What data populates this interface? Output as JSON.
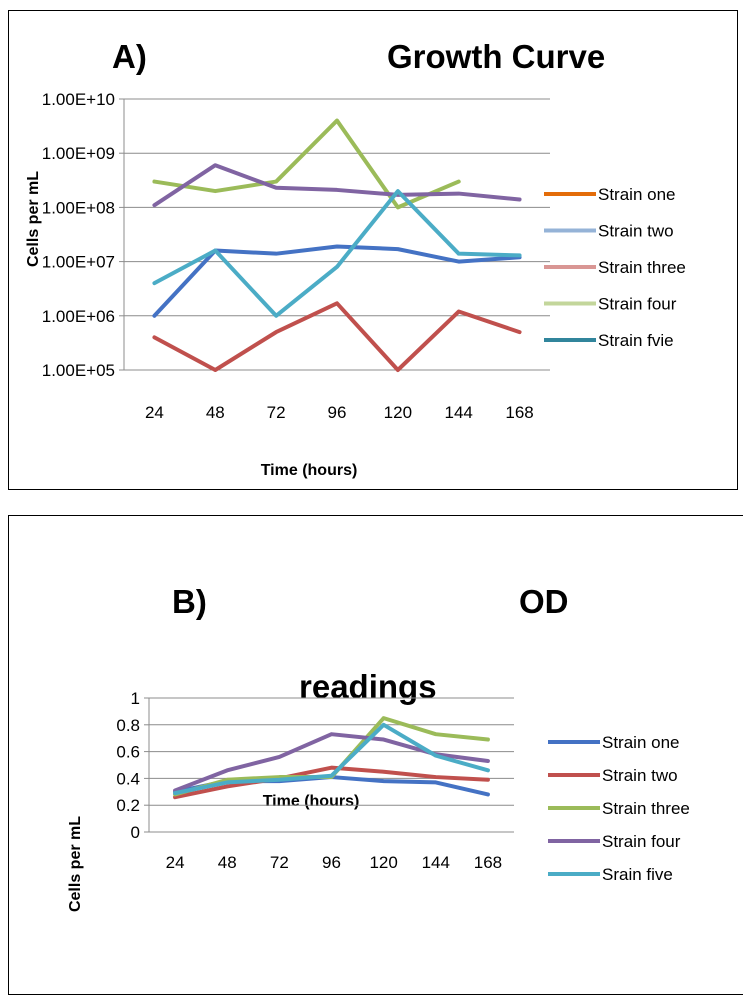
{
  "chart_data": [
    {
      "type": "line",
      "title_prefix": "A)",
      "title": "Growth Curve",
      "xlabel": "Time (hours)",
      "ylabel": "Cells per mL",
      "yscale": "log",
      "ylim": [
        100000,
        10000000000
      ],
      "y_tick_labels": [
        "1.00E+10",
        "1.00E+09",
        "1.00E+08",
        "1.00E+07",
        "1.00E+06",
        "1.00E+05"
      ],
      "categories": [
        "24",
        "48",
        "72",
        "96",
        "120",
        "144",
        "168"
      ],
      "grid": true,
      "legend_position": "right",
      "series": [
        {
          "name": "Strain one",
          "color": "#E36C09",
          "values": [
            1000000,
            16000000,
            14000000,
            19000000,
            17000000,
            10000000,
            12000000
          ],
          "line_color": "#4472C4"
        },
        {
          "name": "Strain two",
          "color": "#95B3D7",
          "values": [
            400000,
            100000,
            500000,
            1700000,
            100000,
            1200000,
            500000
          ],
          "line_color": "#C0504D"
        },
        {
          "name": "Strain three",
          "color": "#D99694",
          "values": [
            300000000,
            200000000,
            300000000,
            4000000000,
            100000000,
            300000000,
            null
          ],
          "line_color": "#9BBB59"
        },
        {
          "name": "Strain four",
          "color": "#C3D69B",
          "values": [
            110000000,
            600000000,
            230000000,
            210000000,
            170000000,
            180000000,
            140000000
          ],
          "line_color": "#8064A2"
        },
        {
          "name": "Strain fvie",
          "color": "#31859C",
          "values": [
            4000000,
            16000000,
            1000000,
            8000000,
            200000000,
            14000000,
            13000000
          ],
          "line_color": "#4BACC6"
        }
      ]
    },
    {
      "type": "line",
      "title_prefix": "B)",
      "title_line1": "OD",
      "title_line2": "readings",
      "xlabel": "Time (hours)",
      "ylabel": "Cells per mL",
      "ylim": [
        0,
        1
      ],
      "y_tick_labels": [
        "1",
        "0.8",
        "0.6",
        "0.4",
        "0.2",
        "0"
      ],
      "categories": [
        "24",
        "48",
        "72",
        "96",
        "120",
        "144",
        "168"
      ],
      "grid": true,
      "legend_position": "right",
      "series": [
        {
          "name": "Strain one",
          "color": "#4472C4",
          "values": [
            0.3,
            0.38,
            0.38,
            0.41,
            0.38,
            0.37,
            0.28
          ]
        },
        {
          "name": "Strain two",
          "color": "#C0504D",
          "values": [
            0.26,
            0.34,
            0.4,
            0.48,
            0.45,
            0.41,
            0.39
          ]
        },
        {
          "name": "Strain three",
          "color": "#9BBB59",
          "values": [
            0.28,
            0.39,
            0.41,
            0.41,
            0.85,
            0.73,
            0.69
          ]
        },
        {
          "name": "Strain four",
          "color": "#8064A2",
          "values": [
            0.31,
            0.46,
            0.56,
            0.73,
            0.69,
            0.58,
            0.53
          ]
        },
        {
          "name": "Srain five",
          "color": "#4BACC6",
          "values": [
            0.29,
            0.37,
            0.39,
            0.42,
            0.8,
            0.57,
            0.46
          ]
        }
      ]
    }
  ]
}
